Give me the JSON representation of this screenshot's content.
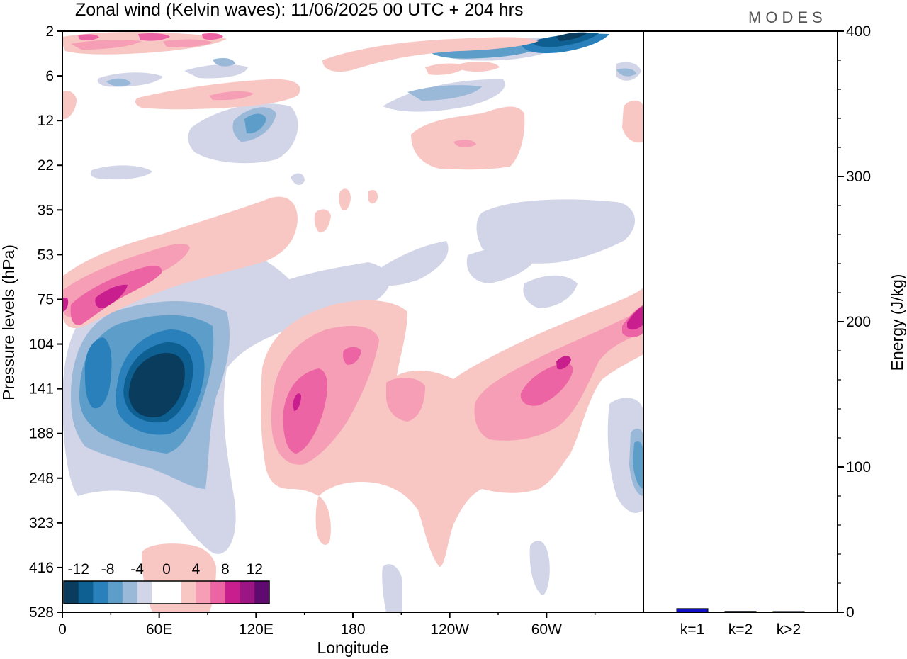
{
  "header": {
    "title": "Zonal wind (Kelvin waves):  11/06/2025  00 UTC  + 204 hrs",
    "brand": "MODES"
  },
  "chart_data": [
    {
      "type": "heatmap",
      "title": "Zonal wind (Kelvin waves):  11/06/2025  00 UTC  + 204 hrs",
      "xlabel": "Longitude",
      "ylabel": "Pressure levels (hPa)",
      "x_ticks": [
        "0",
        "60E",
        "120E",
        "180",
        "120W",
        "60W"
      ],
      "x_tick_degrees": [
        0,
        60,
        120,
        180,
        240,
        300
      ],
      "xlim": [
        0,
        360
      ],
      "y_ticks": [
        "2",
        "6",
        "12",
        "22",
        "35",
        "53",
        "75",
        "104",
        "141",
        "188",
        "248",
        "323",
        "416",
        "528"
      ],
      "colorbar": {
        "labels": [
          "-12",
          "-8",
          "-4",
          "0",
          "4",
          "8",
          "12"
        ],
        "colors": [
          "#0a3c5e",
          "#0e5f92",
          "#2980bb",
          "#5c9dc9",
          "#9ab9d9",
          "#d2d5e7",
          "#ffffff",
          "#ffffff",
          "#f8c7c3",
          "#f59eb6",
          "#ec64a3",
          "#c81e8e",
          "#9b1585",
          "#5e0a6e"
        ]
      },
      "features": [
        {
          "sign": "negative",
          "magnitude": 13,
          "lon": 55,
          "level": "141",
          "label": "strong easterly core"
        },
        {
          "sign": "negative",
          "magnitude": 9,
          "lon": 18,
          "level": "130",
          "label": "easterly core"
        },
        {
          "sign": "positive",
          "magnitude": 11,
          "lon": 150,
          "level": "150",
          "label": "westerly core"
        },
        {
          "sign": "positive",
          "magnitude": 9,
          "lon": 30,
          "level": "75",
          "label": "westerly band"
        },
        {
          "sign": "positive",
          "magnitude": 9,
          "lon": 290,
          "level": "130",
          "label": "westerly band"
        },
        {
          "sign": "positive",
          "magnitude": 10,
          "lon": 355,
          "level": "80",
          "label": "westerly patch"
        },
        {
          "sign": "negative",
          "magnitude": 12,
          "lon": 300,
          "level": "2",
          "label": "upper easterly"
        }
      ]
    },
    {
      "type": "bar",
      "ylabel": "Energy (J/kg)",
      "categories": [
        "k=1",
        "k=2",
        "k>2"
      ],
      "values": [
        2.5,
        0.6,
        0.5
      ],
      "ylim": [
        0,
        400
      ],
      "y_ticks": [
        "0",
        "100",
        "200",
        "300",
        "400"
      ],
      "bar_color": "#1010c8"
    }
  ]
}
